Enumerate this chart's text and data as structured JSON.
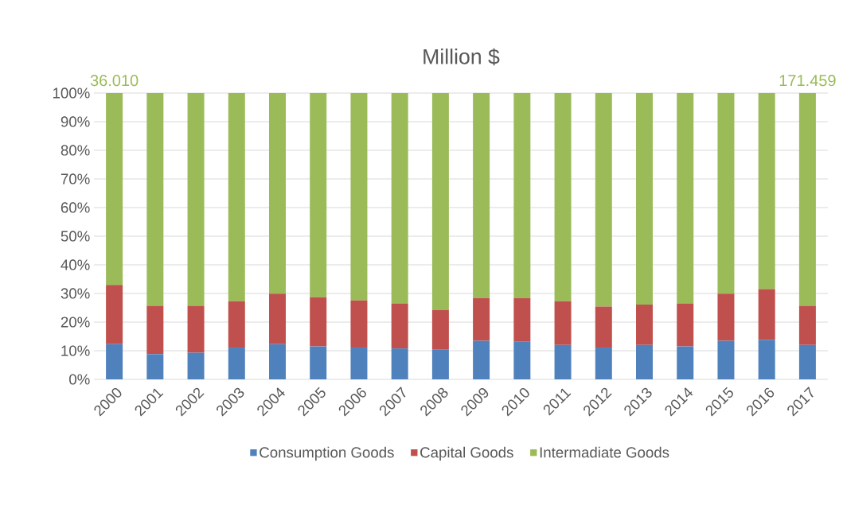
{
  "chart_data": {
    "type": "bar",
    "title": "Million $",
    "stacked": true,
    "categories": [
      "2000",
      "2001",
      "2002",
      "2003",
      "2004",
      "2005",
      "2006",
      "2007",
      "2008",
      "2009",
      "2010",
      "2011",
      "2012",
      "2013",
      "2014",
      "2015",
      "2016",
      "2017"
    ],
    "series": [
      {
        "name": "Consumption Goods",
        "color": "#4f81bd",
        "values": [
          12.3,
          8.8,
          9.3,
          11.1,
          12.3,
          11.5,
          11.1,
          10.8,
          10.5,
          13.5,
          13.1,
          12.0,
          11.1,
          12.0,
          11.5,
          13.5,
          13.8,
          12.0
        ]
      },
      {
        "name": "Capital Goods",
        "color": "#c0504d",
        "values": [
          20.7,
          16.9,
          16.4,
          16.2,
          17.6,
          17.2,
          16.5,
          15.7,
          13.7,
          14.9,
          15.3,
          15.3,
          14.3,
          14.1,
          15.0,
          16.4,
          17.7,
          13.7
        ]
      },
      {
        "name": "Intermadiate Goods",
        "color": "#9bbb59",
        "values": [
          67.0,
          74.3,
          74.3,
          72.7,
          70.1,
          71.3,
          72.4,
          73.5,
          75.8,
          71.6,
          71.6,
          72.7,
          74.6,
          73.9,
          73.5,
          70.1,
          68.5,
          74.3
        ]
      }
    ],
    "ylim": [
      0,
      100
    ],
    "yticks": [
      {
        "value": 0,
        "label": "0%"
      },
      {
        "value": 10,
        "label": "10%"
      },
      {
        "value": 20,
        "label": "20%"
      },
      {
        "value": 30,
        "label": "30%"
      },
      {
        "value": 40,
        "label": "40%"
      },
      {
        "value": 50,
        "label": "50%"
      },
      {
        "value": 60,
        "label": "60%"
      },
      {
        "value": 70,
        "label": "70%"
      },
      {
        "value": 80,
        "label": "80%"
      },
      {
        "value": 90,
        "label": "90%"
      },
      {
        "value": 100,
        "label": "100%"
      }
    ],
    "grid": "y",
    "legend": "bottom",
    "annotations": [
      {
        "text": "36.010",
        "x": "2000",
        "y": 100
      },
      {
        "text": "171.459",
        "x": "2017",
        "y": 100
      }
    ]
  }
}
